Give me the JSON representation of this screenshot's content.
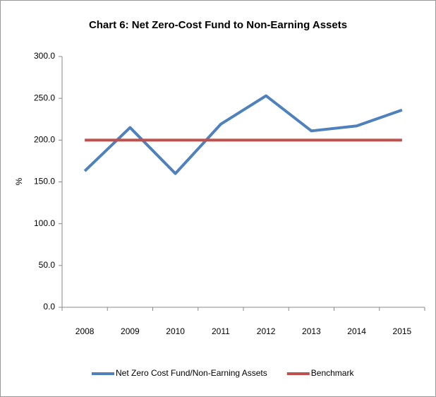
{
  "chart_data": {
    "type": "line",
    "title": "Chart 6: Net Zero-Cost Fund to Non-Earning Assets",
    "y_label": "%",
    "categories": [
      "2008",
      "2009",
      "2010",
      "2011",
      "2012",
      "2013",
      "2014",
      "2015"
    ],
    "series": [
      {
        "name": "Net Zero Cost Fund/Non-Earning Assets",
        "color": "#4f81bd",
        "values": [
          163,
          215,
          160,
          219,
          253,
          211,
          217,
          236
        ]
      },
      {
        "name": "Benchmark",
        "color": "#c0504d",
        "values": [
          200,
          200,
          200,
          200,
          200,
          200,
          200,
          200
        ]
      }
    ],
    "ylim": [
      0,
      300
    ],
    "yticks": [
      {
        "value": 0,
        "label": "0.0"
      },
      {
        "value": 50,
        "label": "50.0"
      },
      {
        "value": 100,
        "label": "100.0"
      },
      {
        "value": 150,
        "label": "150.0"
      },
      {
        "value": 200,
        "label": "200.0"
      },
      {
        "value": 250,
        "label": "250.0"
      },
      {
        "value": 300,
        "label": "300.0"
      }
    ],
    "grid": false,
    "legend": "bottom"
  }
}
